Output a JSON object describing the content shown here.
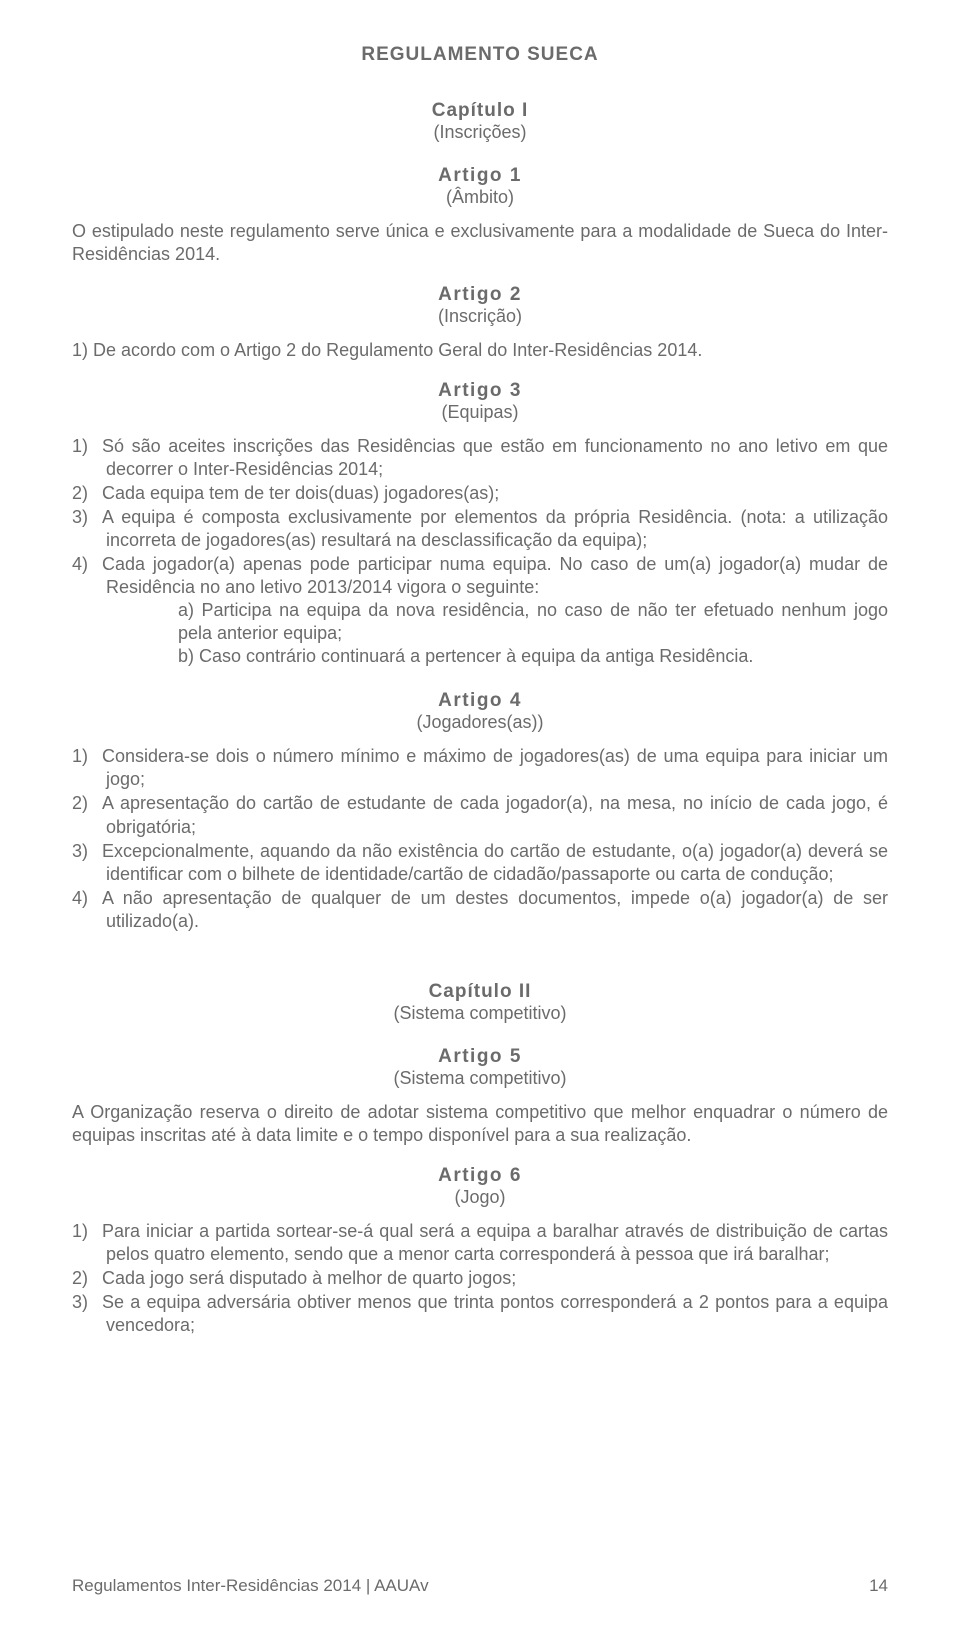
{
  "title": "REGULAMENTO SUECA",
  "chapter1": {
    "label": "Capítulo I",
    "sub": "(Inscrições)"
  },
  "article1": {
    "label": "Artigo 1",
    "sub": "(Âmbito)",
    "body": "O estipulado neste regulamento serve única e exclusivamente para a modalidade de Sueca do Inter-Residências 2014."
  },
  "article2": {
    "label": "Artigo 2",
    "sub": "(Inscrição)",
    "body": "1) De acordo com o Artigo 2 do Regulamento Geral do Inter-Residências 2014."
  },
  "article3": {
    "label": "Artigo 3",
    "sub": "(Equipas)",
    "items": [
      "Só são aceites inscrições das Residências que estão em funcionamento no ano letivo em que decorrer o Inter-Residências 2014;",
      "Cada equipa tem de ter dois(duas) jogadores(as);",
      "A equipa é composta exclusivamente por elementos da própria Residência. (nota: a utilização incorreta de jogadores(as) resultará na desclassificação da equipa);",
      "Cada jogador(a) apenas pode participar numa equipa. No caso de um(a) jogador(a) mudar de Residência no ano letivo 2013/2014 vigora o seguinte:"
    ],
    "subA": "a) Participa na equipa da nova residência, no caso de não ter efetuado nenhum jogo pela anterior equipa;",
    "subB": "b) Caso contrário continuará a pertencer à equipa da antiga Residência."
  },
  "article4": {
    "label": "Artigo 4",
    "sub": "(Jogadores(as))",
    "items": [
      "Considera-se dois o número mínimo e máximo de jogadores(as) de uma equipa para iniciar um jogo;",
      "A apresentação do cartão de estudante de cada jogador(a), na mesa, no início de cada jogo, é obrigatória;",
      "Excepcionalmente, aquando da não existência do cartão de estudante, o(a) jogador(a) deverá se identificar com o bilhete de identidade/cartão de cidadão/passaporte ou carta de condução;",
      "A não apresentação de qualquer de um destes documentos, impede o(a) jogador(a) de ser utilizado(a)."
    ]
  },
  "chapter2": {
    "label": "Capítulo II",
    "sub": "(Sistema competitivo)"
  },
  "article5": {
    "label": "Artigo 5",
    "sub": "(Sistema competitivo)",
    "body": "A Organização reserva o direito de adotar sistema competitivo que melhor enquadrar o número de equipas inscritas até à data limite e o tempo disponível para a sua realização."
  },
  "article6": {
    "label": "Artigo 6",
    "sub": "(Jogo)",
    "items": [
      "Para iniciar a partida sortear-se-á qual será a equipa a baralhar através de distribuição de cartas pelos quatro elemento, sendo que a menor carta corresponderá à pessoa que irá baralhar;",
      "Cada jogo será disputado à melhor de quarto jogos;",
      "Se a equipa adversária obtiver menos que trinta pontos corresponderá a 2 pontos para a equipa vencedora;"
    ]
  },
  "markers": {
    "m1": "1)",
    "m2": "2)",
    "m3": "3)",
    "m4": "4)"
  },
  "footer": {
    "left": "Regulamentos Inter-Residências 2014 | AAUAv",
    "page": "14"
  }
}
